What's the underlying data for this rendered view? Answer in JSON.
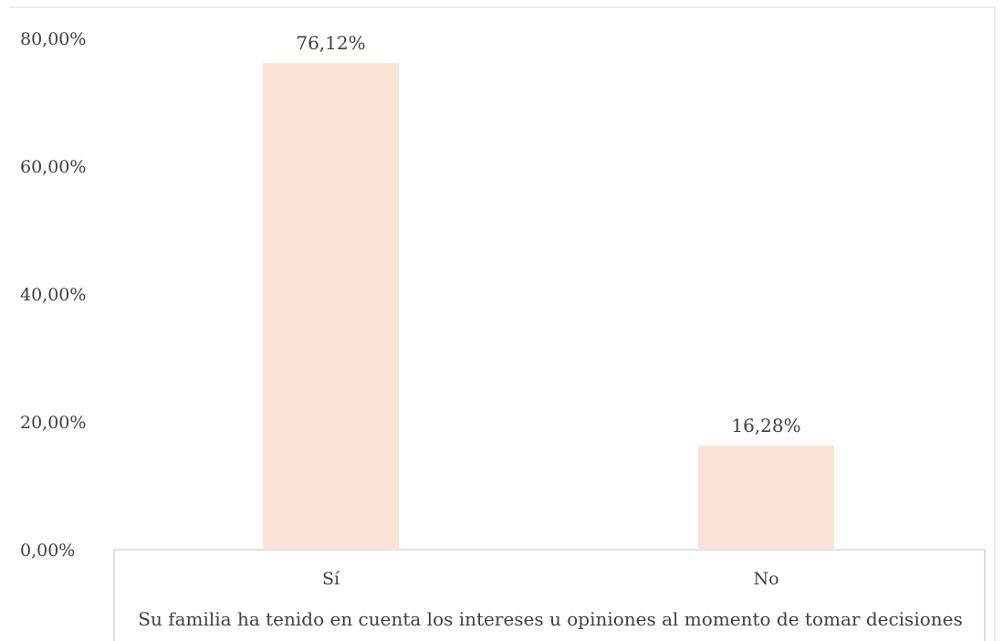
{
  "chart_data": {
    "type": "bar",
    "categories": [
      "Sí",
      "No"
    ],
    "values": [
      76.12,
      16.28
    ],
    "value_labels": [
      "76,12%",
      "16,28%"
    ],
    "xlabel": "Su familia ha tenido en cuenta los intereses u opiniones al momento de tomar decisiones",
    "ylabel": "",
    "ylim": [
      0,
      80
    ],
    "yticks": [
      0,
      20,
      40,
      60,
      80
    ],
    "ytick_labels": [
      "0,00%",
      "20,00%",
      "40,00%",
      "60,00%",
      "80,00%"
    ],
    "grid": false,
    "legend": "none",
    "bar_color": "#fbe4d5",
    "axis_color": "#bfbfbf",
    "text_color": "#404040"
  }
}
